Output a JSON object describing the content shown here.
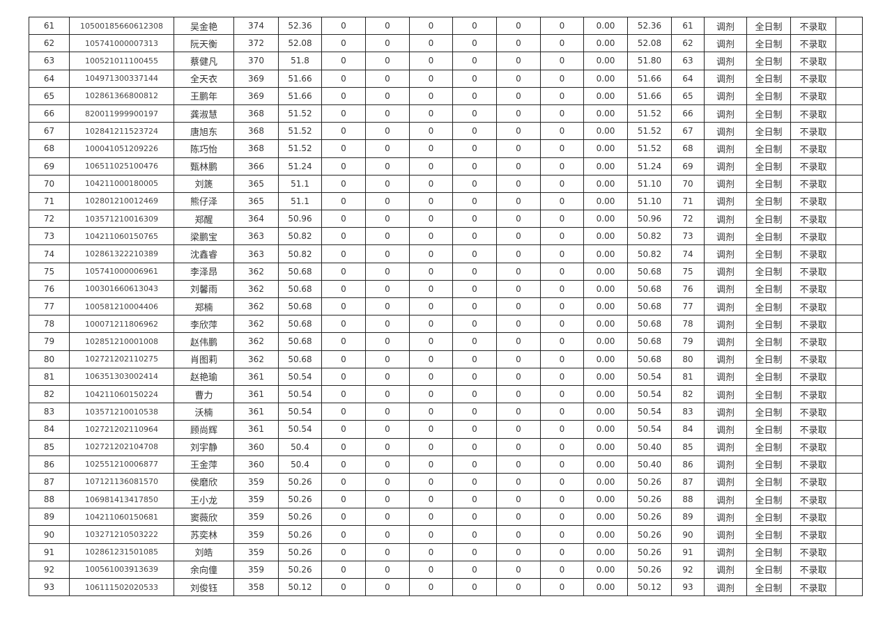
{
  "rows": [
    [
      "61",
      "10500185660612308",
      "吴金艳",
      "374",
      "52.36",
      "0",
      "0",
      "0",
      "0",
      "0",
      "0",
      "0.00",
      "52.36",
      "61",
      "调剂",
      "全日制",
      "不录取",
      ""
    ],
    [
      "62",
      "105741000007313",
      "阮天衡",
      "372",
      "52.08",
      "0",
      "0",
      "0",
      "0",
      "0",
      "0",
      "0.00",
      "52.08",
      "62",
      "调剂",
      "全日制",
      "不录取",
      ""
    ],
    [
      "63",
      "100521011100455",
      "蔡健凡",
      "370",
      "51.8",
      "0",
      "0",
      "0",
      "0",
      "0",
      "0",
      "0.00",
      "51.80",
      "63",
      "调剂",
      "全日制",
      "不录取",
      ""
    ],
    [
      "64",
      "104971300337144",
      "全天衣",
      "369",
      "51.66",
      "0",
      "0",
      "0",
      "0",
      "0",
      "0",
      "0.00",
      "51.66",
      "64",
      "调剂",
      "全日制",
      "不录取",
      ""
    ],
    [
      "65",
      "102861366800812",
      "王鹏年",
      "369",
      "51.66",
      "0",
      "0",
      "0",
      "0",
      "0",
      "0",
      "0.00",
      "51.66",
      "65",
      "调剂",
      "全日制",
      "不录取",
      ""
    ],
    [
      "66",
      "820011999900197",
      "龚淑慧",
      "368",
      "51.52",
      "0",
      "0",
      "0",
      "0",
      "0",
      "0",
      "0.00",
      "51.52",
      "66",
      "调剂",
      "全日制",
      "不录取",
      ""
    ],
    [
      "67",
      "102841211523724",
      "唐旭东",
      "368",
      "51.52",
      "0",
      "0",
      "0",
      "0",
      "0",
      "0",
      "0.00",
      "51.52",
      "67",
      "调剂",
      "全日制",
      "不录取",
      ""
    ],
    [
      "68",
      "100041051209226",
      "陈巧怡",
      "368",
      "51.52",
      "0",
      "0",
      "0",
      "0",
      "0",
      "0",
      "0.00",
      "51.52",
      "68",
      "调剂",
      "全日制",
      "不录取",
      ""
    ],
    [
      "69",
      "106511025100476",
      "甄林鹏",
      "366",
      "51.24",
      "0",
      "0",
      "0",
      "0",
      "0",
      "0",
      "0.00",
      "51.24",
      "69",
      "调剂",
      "全日制",
      "不录取",
      ""
    ],
    [
      "70",
      "104211000180005",
      "刘篪",
      "365",
      "51.1",
      "0",
      "0",
      "0",
      "0",
      "0",
      "0",
      "0.00",
      "51.10",
      "70",
      "调剂",
      "全日制",
      "不录取",
      ""
    ],
    [
      "71",
      "102801210012469",
      "熊仔泽",
      "365",
      "51.1",
      "0",
      "0",
      "0",
      "0",
      "0",
      "0",
      "0.00",
      "51.10",
      "71",
      "调剂",
      "全日制",
      "不录取",
      ""
    ],
    [
      "72",
      "103571210016309",
      "郑醒",
      "364",
      "50.96",
      "0",
      "0",
      "0",
      "0",
      "0",
      "0",
      "0.00",
      "50.96",
      "72",
      "调剂",
      "全日制",
      "不录取",
      ""
    ],
    [
      "73",
      "104211060150765",
      "梁鹏宝",
      "363",
      "50.82",
      "0",
      "0",
      "0",
      "0",
      "0",
      "0",
      "0.00",
      "50.82",
      "73",
      "调剂",
      "全日制",
      "不录取",
      ""
    ],
    [
      "74",
      "102861322210389",
      "沈鑫睿",
      "363",
      "50.82",
      "0",
      "0",
      "0",
      "0",
      "0",
      "0",
      "0.00",
      "50.82",
      "74",
      "调剂",
      "全日制",
      "不录取",
      ""
    ],
    [
      "75",
      "105741000006961",
      "李泽昂",
      "362",
      "50.68",
      "0",
      "0",
      "0",
      "0",
      "0",
      "0",
      "0.00",
      "50.68",
      "75",
      "调剂",
      "全日制",
      "不录取",
      ""
    ],
    [
      "76",
      "100301660613043",
      "刘馨雨",
      "362",
      "50.68",
      "0",
      "0",
      "0",
      "0",
      "0",
      "0",
      "0.00",
      "50.68",
      "76",
      "调剂",
      "全日制",
      "不录取",
      ""
    ],
    [
      "77",
      "100581210004406",
      "郑楠",
      "362",
      "50.68",
      "0",
      "0",
      "0",
      "0",
      "0",
      "0",
      "0.00",
      "50.68",
      "77",
      "调剂",
      "全日制",
      "不录取",
      ""
    ],
    [
      "78",
      "100071211806962",
      "李欣萍",
      "362",
      "50.68",
      "0",
      "0",
      "0",
      "0",
      "0",
      "0",
      "0.00",
      "50.68",
      "78",
      "调剂",
      "全日制",
      "不录取",
      ""
    ],
    [
      "79",
      "102851210001008",
      "赵伟鹏",
      "362",
      "50.68",
      "0",
      "0",
      "0",
      "0",
      "0",
      "0",
      "0.00",
      "50.68",
      "79",
      "调剂",
      "全日制",
      "不录取",
      ""
    ],
    [
      "80",
      "102721202110275",
      "肖图莉",
      "362",
      "50.68",
      "0",
      "0",
      "0",
      "0",
      "0",
      "0",
      "0.00",
      "50.68",
      "80",
      "调剂",
      "全日制",
      "不录取",
      ""
    ],
    [
      "81",
      "106351303002414",
      "赵艳瑜",
      "361",
      "50.54",
      "0",
      "0",
      "0",
      "0",
      "0",
      "0",
      "0.00",
      "50.54",
      "81",
      "调剂",
      "全日制",
      "不录取",
      ""
    ],
    [
      "82",
      "104211060150224",
      "曹力",
      "361",
      "50.54",
      "0",
      "0",
      "0",
      "0",
      "0",
      "0",
      "0.00",
      "50.54",
      "82",
      "调剂",
      "全日制",
      "不录取",
      ""
    ],
    [
      "83",
      "103571210010538",
      "沃楠",
      "361",
      "50.54",
      "0",
      "0",
      "0",
      "0",
      "0",
      "0",
      "0.00",
      "50.54",
      "83",
      "调剂",
      "全日制",
      "不录取",
      ""
    ],
    [
      "84",
      "102721202110964",
      "顾尚辉",
      "361",
      "50.54",
      "0",
      "0",
      "0",
      "0",
      "0",
      "0",
      "0.00",
      "50.54",
      "84",
      "调剂",
      "全日制",
      "不录取",
      ""
    ],
    [
      "85",
      "102721202104708",
      "刘宇静",
      "360",
      "50.4",
      "0",
      "0",
      "0",
      "0",
      "0",
      "0",
      "0.00",
      "50.40",
      "85",
      "调剂",
      "全日制",
      "不录取",
      ""
    ],
    [
      "86",
      "102551210006877",
      "王金萍",
      "360",
      "50.4",
      "0",
      "0",
      "0",
      "0",
      "0",
      "0",
      "0.00",
      "50.40",
      "86",
      "调剂",
      "全日制",
      "不录取",
      ""
    ],
    [
      "87",
      "107121136081570",
      "侯磨欣",
      "359",
      "50.26",
      "0",
      "0",
      "0",
      "0",
      "0",
      "0",
      "0.00",
      "50.26",
      "87",
      "调剂",
      "全日制",
      "不录取",
      ""
    ],
    [
      "88",
      "106981413417850",
      "王小龙",
      "359",
      "50.26",
      "0",
      "0",
      "0",
      "0",
      "0",
      "0",
      "0.00",
      "50.26",
      "88",
      "调剂",
      "全日制",
      "不录取",
      ""
    ],
    [
      "89",
      "104211060150681",
      "窦薇欣",
      "359",
      "50.26",
      "0",
      "0",
      "0",
      "0",
      "0",
      "0",
      "0.00",
      "50.26",
      "89",
      "调剂",
      "全日制",
      "不录取",
      ""
    ],
    [
      "90",
      "103271210503222",
      "苏奕林",
      "359",
      "50.26",
      "0",
      "0",
      "0",
      "0",
      "0",
      "0",
      "0.00",
      "50.26",
      "90",
      "调剂",
      "全日制",
      "不录取",
      ""
    ],
    [
      "91",
      "102861231501085",
      "刘皓",
      "359",
      "50.26",
      "0",
      "0",
      "0",
      "0",
      "0",
      "0",
      "0.00",
      "50.26",
      "91",
      "调剂",
      "全日制",
      "不录取",
      ""
    ],
    [
      "92",
      "100561003913639",
      "余向僮",
      "359",
      "50.26",
      "0",
      "0",
      "0",
      "0",
      "0",
      "0",
      "0.00",
      "50.26",
      "92",
      "调剂",
      "全日制",
      "不录取",
      ""
    ],
    [
      "93",
      "106111502020533",
      "刘俊钰",
      "358",
      "50.12",
      "0",
      "0",
      "0",
      "0",
      "0",
      "0",
      "0.00",
      "50.12",
      "93",
      "调剂",
      "全日制",
      "不录取",
      ""
    ]
  ]
}
